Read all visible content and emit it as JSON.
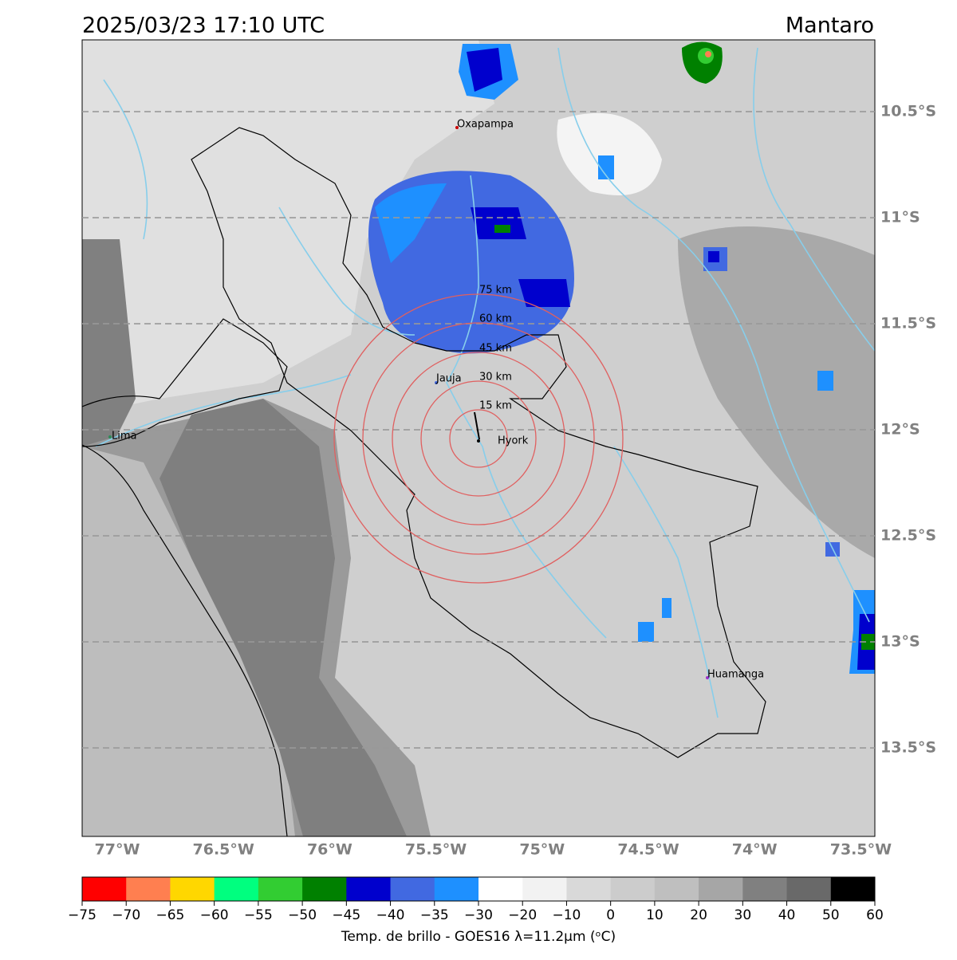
{
  "header": {
    "timestamp": "2025/03/23 17:10 UTC",
    "region": "Mantaro"
  },
  "map": {
    "lat_labels": [
      "10.5°S",
      "11°S",
      "11.5°S",
      "12°S",
      "12.5°S",
      "13°S",
      "13.5°S"
    ],
    "lon_labels": [
      "77°W",
      "76.5°W",
      "76°W",
      "75.5°W",
      "75°W",
      "74.5°W",
      "74°W",
      "73.5°W"
    ],
    "places": [
      {
        "label": "Oxapampa"
      },
      {
        "label": "Jauja"
      },
      {
        "label": "Hyork"
      },
      {
        "label": "Lima"
      },
      {
        "label": "Huamanga"
      }
    ],
    "ring_labels": [
      "15 km",
      "30 km",
      "45 km",
      "60 km",
      "75 km"
    ]
  },
  "colorbar": {
    "colors": [
      "#ff0000",
      "#ff7f50",
      "#ffd700",
      "#00ff7f",
      "#32cd32",
      "#008000",
      "#0000cd",
      "#4169e1",
      "#1e90ff",
      "#ffffff",
      "#f2f2f2",
      "#d9d9d9",
      "#cccccc",
      "#bfbfbf",
      "#a6a6a6",
      "#808080",
      "#696969",
      "#000000"
    ],
    "ticks": [
      "−75",
      "−70",
      "−65",
      "−60",
      "−55",
      "−50",
      "−45",
      "−40",
      "−35",
      "−30",
      "−20",
      "−10",
      "0",
      "10",
      "20",
      "30",
      "40",
      "50",
      "60"
    ],
    "label": "Temp. de brillo - GOES16 λ=11.2μm (ᵒC)"
  }
}
